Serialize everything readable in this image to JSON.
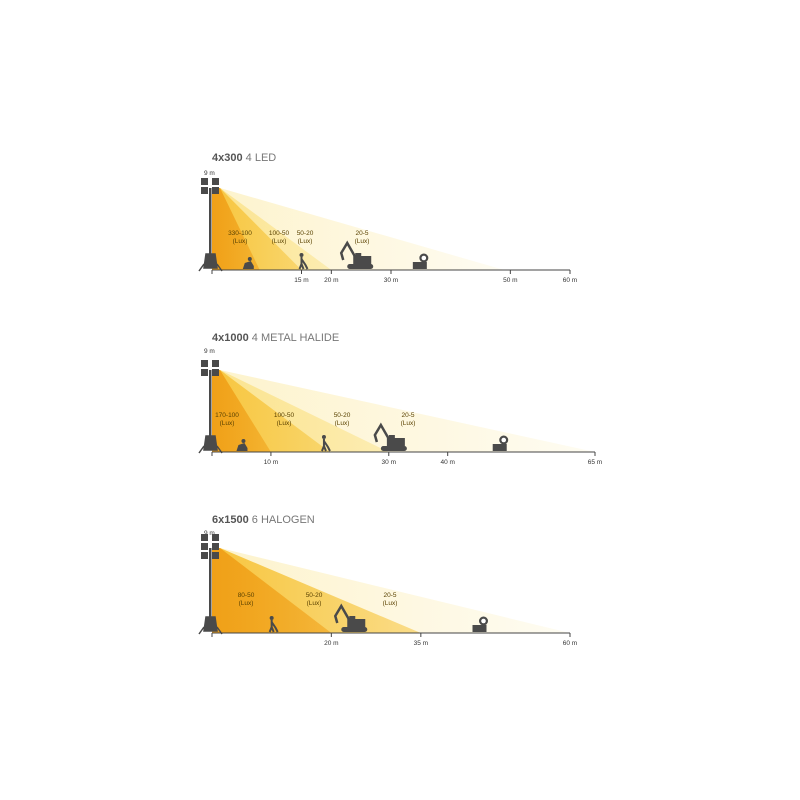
{
  "accent_colors": {
    "deep": "#f0a018",
    "mid": "#f7c640",
    "light": "#fbe490",
    "pale": "#fdf3cc",
    "silhouette": "#4a4a4a"
  },
  "panels": [
    {
      "title_bold": "4x300",
      "title_light": "4 LED",
      "height_label": "9 m",
      "axis_max_m": 60,
      "ticks": [
        {
          "m": 15,
          "label": "15 m"
        },
        {
          "m": 20,
          "label": "20 m"
        },
        {
          "m": 30,
          "label": "30 m"
        },
        {
          "m": 50,
          "label": "50 m"
        },
        {
          "m": 60,
          "label": "60 m"
        }
      ],
      "zones": [
        {
          "range": "330-100",
          "unit": "(Lux)",
          "reach_m": 8
        },
        {
          "range": "100-50",
          "unit": "(Lux)",
          "reach_m": 15
        },
        {
          "range": "50-20",
          "unit": "(Lux)",
          "reach_m": 20
        },
        {
          "range": "20-5",
          "unit": "(Lux)",
          "reach_m": 49
        }
      ]
    },
    {
      "title_bold": "4x1000",
      "title_light": "4 METAL HALIDE",
      "height_label": "9 m",
      "axis_max_m": 65,
      "ticks": [
        {
          "m": 10,
          "label": "10 m"
        },
        {
          "m": 30,
          "label": "30 m"
        },
        {
          "m": 40,
          "label": "40 m"
        },
        {
          "m": 65,
          "label": "65 m"
        }
      ],
      "zones": [
        {
          "range": "170-100",
          "unit": "(Lux)",
          "reach_m": 10
        },
        {
          "range": "100-50",
          "unit": "(Lux)",
          "reach_m": 20
        },
        {
          "range": "50-20",
          "unit": "(Lux)",
          "reach_m": 30
        },
        {
          "range": "20-5",
          "unit": "(Lux)",
          "reach_m": 65
        }
      ]
    },
    {
      "title_bold": "6x1500",
      "title_light": "6 HALOGEN",
      "height_label": "9 m",
      "axis_max_m": 60,
      "ticks": [
        {
          "m": 20,
          "label": "20 m"
        },
        {
          "m": 35,
          "label": "35 m"
        },
        {
          "m": 60,
          "label": "60 m"
        }
      ],
      "zones": [
        {
          "range": "80-50",
          "unit": "(Lux)",
          "reach_m": 20
        },
        {
          "range": "50-20",
          "unit": "(Lux)",
          "reach_m": 35
        },
        {
          "range": "20-5",
          "unit": "(Lux)",
          "reach_m": 60
        }
      ]
    }
  ]
}
